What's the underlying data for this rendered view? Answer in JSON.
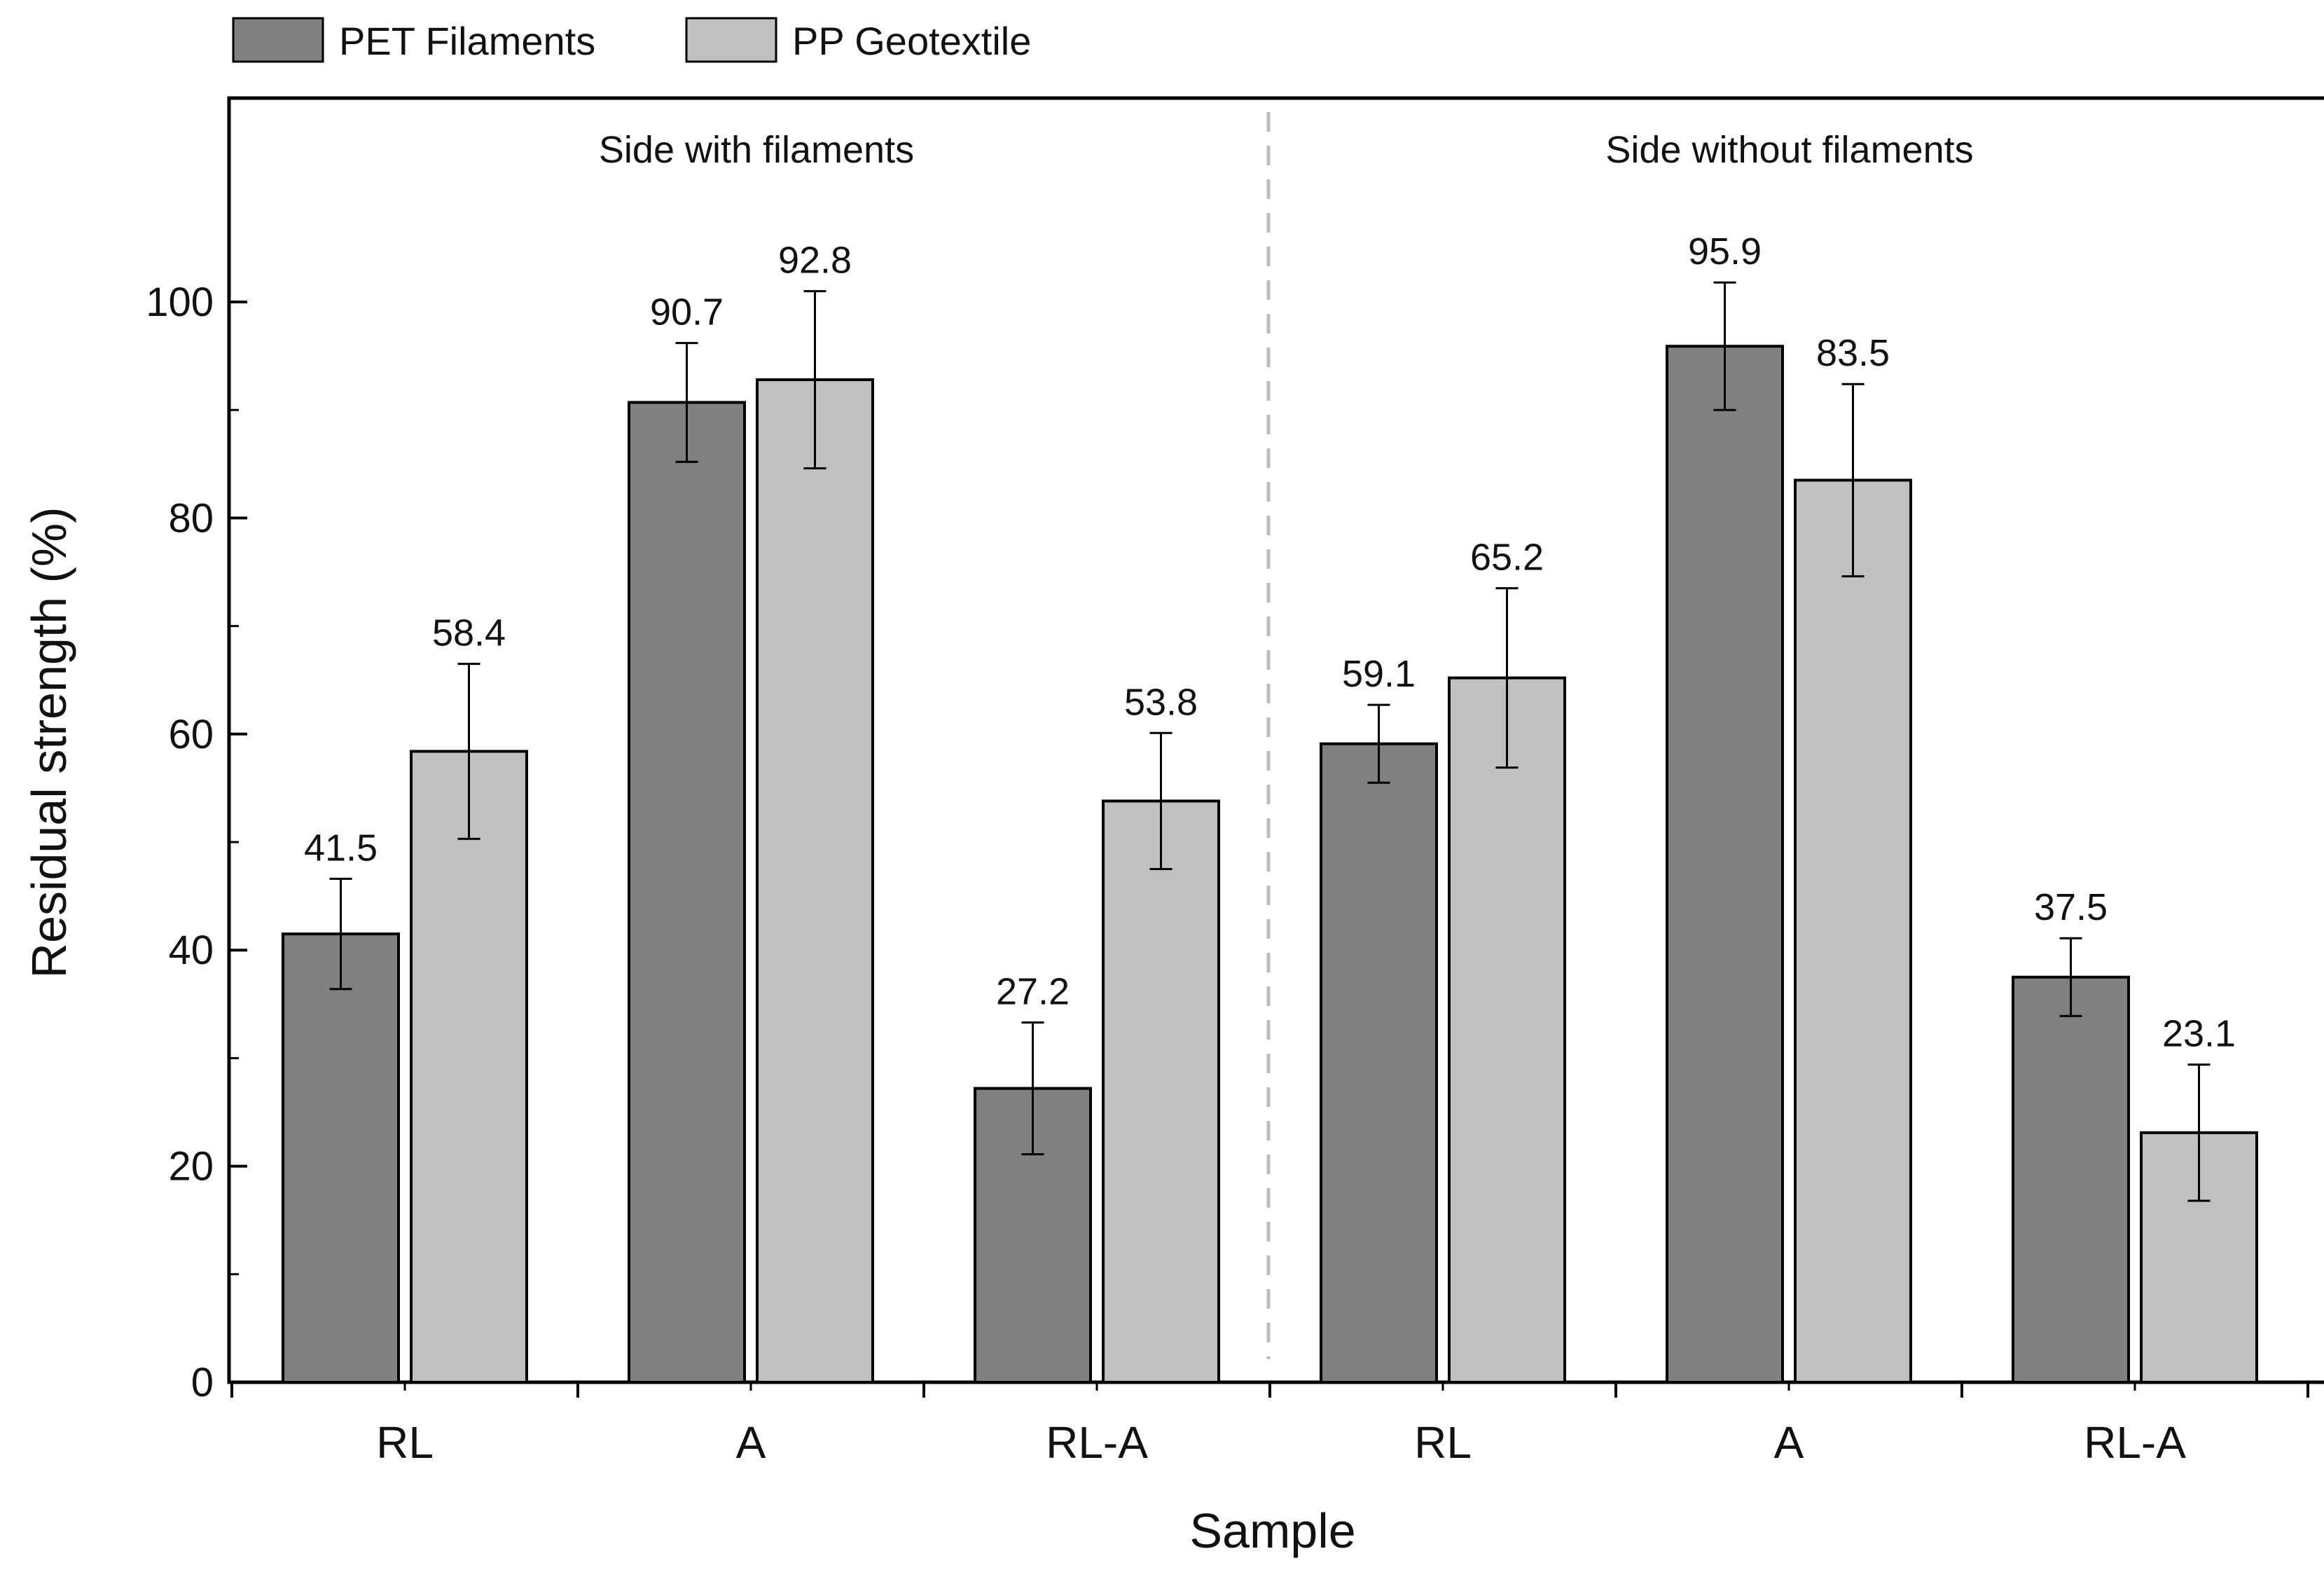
{
  "chart_data": {
    "type": "bar",
    "xlabel": "Sample",
    "ylabel": "Residual strength (%)",
    "ylim": [
      0,
      120
    ],
    "yticks": [
      0,
      20,
      40,
      60,
      80,
      100
    ],
    "grid": false,
    "legend_position": "top-left, outside",
    "categories": [
      "RL",
      "A",
      "RL-A",
      "RL",
      "A",
      "RL-A"
    ],
    "groups": [
      {
        "label": "Side with filaments",
        "categories": [
          0,
          1,
          2
        ]
      },
      {
        "label": "Side without filaments",
        "categories": [
          3,
          4,
          5
        ]
      }
    ],
    "series": [
      {
        "name": "PET Filaments",
        "color": "#808080",
        "values": [
          41.5,
          90.7,
          27.2,
          59.1,
          95.9,
          37.5
        ],
        "labels": [
          "41.5",
          "90.7",
          "27.2",
          "59.1",
          "95.9",
          "37.5"
        ],
        "error": [
          5.1,
          5.5,
          6.1,
          3.6,
          5.9,
          3.6
        ]
      },
      {
        "name": "PP Geotextile",
        "color": "#c0c0c0",
        "values": [
          58.4,
          92.8,
          53.8,
          65.2,
          83.5,
          23.1
        ],
        "labels": [
          "58.4",
          "92.8",
          "53.8",
          "65.2",
          "83.5",
          "23.1"
        ],
        "error": [
          8.1,
          8.2,
          6.3,
          8.3,
          8.9,
          6.3
        ]
      }
    ]
  }
}
